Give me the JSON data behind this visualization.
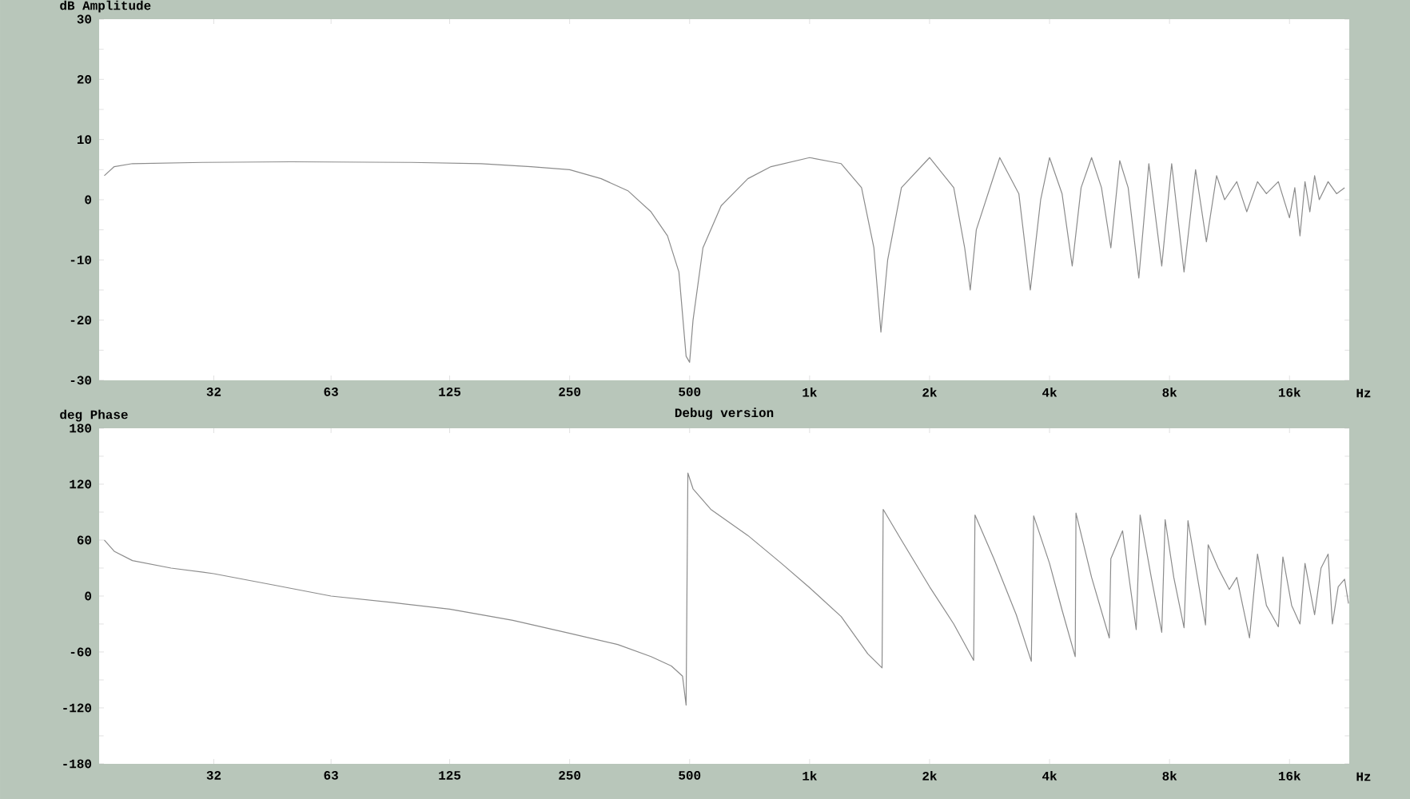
{
  "chart_data": [
    {
      "type": "line",
      "ylabel": "dB Amplitude",
      "xlabel": "Hz",
      "log": "x",
      "color": "#8c8c8c",
      "xlim": [
        16.5,
        22600
      ],
      "ylim": [
        -30,
        30
      ],
      "yticks": [
        -30,
        -20,
        -10,
        0,
        10,
        20,
        30
      ],
      "xticks": [
        32,
        63,
        125,
        250,
        500,
        {
          "value": 1000,
          "label": "1k"
        },
        {
          "value": 2000,
          "label": "2k"
        },
        {
          "value": 4000,
          "label": "4k"
        },
        {
          "value": 8000,
          "label": "8k"
        },
        {
          "value": 16000,
          "label": "16k"
        }
      ],
      "annotations": [
        "Debug version"
      ],
      "x": [
        17,
        18,
        20,
        30,
        50,
        100,
        150,
        200,
        250,
        300,
        350,
        400,
        440,
        470,
        490,
        500,
        510,
        540,
        600,
        700,
        800,
        1000,
        1200,
        1350,
        1450,
        1510,
        1570,
        1700,
        2000,
        2300,
        2450,
        2530,
        2620,
        3000,
        3350,
        3580,
        3800,
        4000,
        4300,
        4560,
        4800,
        5100,
        5400,
        5700,
        6000,
        6300,
        6700,
        7100,
        7650,
        8100,
        8700,
        9300,
        9900,
        10500,
        11000,
        11800,
        12500,
        13300,
        14000,
        15000,
        16000,
        16500,
        17000,
        17500,
        18000,
        18500,
        19000,
        20000,
        21000,
        22000
      ],
      "values": [
        4,
        5.5,
        6,
        6.2,
        6.3,
        6.2,
        6,
        5.5,
        5,
        3.5,
        1.5,
        -2,
        -6,
        -12,
        -26,
        -27,
        -20,
        -8,
        -1,
        3.5,
        5.5,
        7,
        6,
        2,
        -8,
        -22,
        -10,
        2,
        7,
        2,
        -8,
        -15,
        -5,
        7,
        1,
        -15,
        0,
        7,
        1,
        -11,
        2,
        7,
        2,
        -8,
        6.5,
        2,
        -13,
        6,
        -11,
        6,
        -12,
        5,
        -7,
        4,
        0,
        3,
        -2,
        3,
        1,
        3,
        -3,
        2,
        -6,
        3,
        -2,
        4,
        0,
        3,
        1,
        2
      ]
    },
    {
      "type": "line",
      "ylabel": "deg Phase",
      "xlabel": "Hz",
      "log": "x",
      "color": "#8c8c8c",
      "xlim": [
        16.5,
        22600
      ],
      "ylim": [
        -180,
        180
      ],
      "yticks": [
        -180,
        -120,
        -60,
        0,
        60,
        120,
        180
      ],
      "xticks": [
        32,
        63,
        125,
        250,
        500,
        {
          "value": 1000,
          "label": "1k"
        },
        {
          "value": 2000,
          "label": "2k"
        },
        {
          "value": 4000,
          "label": "4k"
        },
        {
          "value": 8000,
          "label": "8k"
        },
        {
          "value": 16000,
          "label": "16k"
        }
      ],
      "x": [
        17,
        18,
        20,
        25,
        32,
        45,
        63,
        90,
        125,
        180,
        250,
        330,
        400,
        450,
        480,
        490,
        495,
        510,
        565,
        700,
        850,
        1000,
        1200,
        1400,
        1520,
        1530,
        1700,
        2000,
        2300,
        2580,
        2600,
        2900,
        3300,
        3600,
        3650,
        4000,
        4300,
        4640,
        4660,
        5100,
        5650,
        5700,
        6100,
        6600,
        6750,
        7200,
        7650,
        7800,
        8200,
        8700,
        8900,
        9400,
        9850,
        10000,
        10600,
        11300,
        11800,
        12700,
        13300,
        14000,
        15000,
        15400,
        16200,
        17000,
        17500,
        18500,
        19200,
        20000,
        20500,
        21200,
        22000,
        22500
      ],
      "values": [
        60,
        48,
        38,
        30,
        24,
        12,
        0,
        -7,
        -14,
        -26,
        -40,
        -52,
        -65,
        -75,
        -86,
        -117,
        132,
        115,
        93,
        65,
        35,
        9,
        -22,
        -62,
        -77,
        93,
        60,
        10,
        -30,
        -69,
        87,
        40,
        -20,
        -70,
        86,
        35,
        -15,
        -65,
        89,
        20,
        -45,
        40,
        70,
        -36,
        87,
        20,
        -39,
        82,
        20,
        -34,
        81,
        20,
        -31,
        55,
        30,
        7,
        20,
        -45,
        45,
        -10,
        -33,
        42,
        -10,
        -30,
        35,
        -20,
        30,
        45,
        -30,
        10,
        18,
        -8
      ]
    }
  ]
}
